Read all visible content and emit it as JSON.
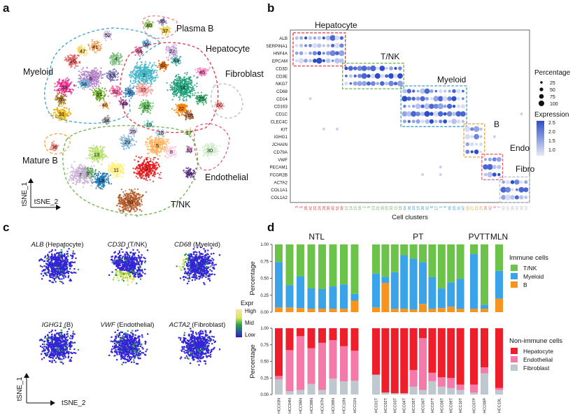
{
  "panel_labels": {
    "a": "a",
    "b": "b",
    "c": "c",
    "d": "d"
  },
  "panel_a": {
    "axis_x": "tSNE_2",
    "axis_y": "tSNE_1",
    "group_labels": [
      "Plasma B",
      "Hepatocyte",
      "Fibroblast",
      "Myeloid",
      "Mature B",
      "Endothelial",
      "T/NK"
    ],
    "cluster_ids": [
      "40",
      "37",
      "35",
      "44",
      "39",
      "41",
      "27",
      "49",
      "10",
      "4",
      "6",
      "47",
      "38",
      "42",
      "14",
      "28",
      "21",
      "26",
      "33",
      "31",
      "23",
      "32",
      "2",
      "46",
      "43",
      "12",
      "22",
      "9",
      "48",
      "45",
      "34",
      "19",
      "25",
      "36",
      "29",
      "5",
      "13",
      "8",
      "51",
      "30",
      "11",
      "18",
      "3",
      "1",
      "24",
      "20",
      "7",
      "15",
      "16",
      "17",
      "50",
      "52"
    ]
  },
  "panel_b": {
    "x_axis_label": "Cell clusters",
    "genes": [
      "ALB",
      "SERPINA1",
      "HNF4A",
      "EPCAM",
      "CD3D",
      "CD3E",
      "NKG7",
      "CD68",
      "CD14",
      "CD163",
      "CD1C",
      "CLEC4C",
      "KIT",
      "IGHG1",
      "JCHAIN",
      "CD79A",
      "VWF",
      "PECAM1",
      "FCGR2B",
      "ACTA2",
      "COL1A1",
      "COL1A2"
    ],
    "cluster_ticks": [
      "3",
      "5",
      "26",
      "41",
      "22",
      "24",
      "28",
      "39",
      "45",
      "51",
      "49",
      "12",
      "14",
      "15",
      "16",
      "2",
      "9",
      "13",
      "21",
      "35",
      "20",
      "33",
      "11",
      "18",
      "44",
      "36",
      "10",
      "19",
      "30",
      "32",
      "8",
      "17",
      "1",
      "4",
      "46",
      "25",
      "31",
      "47",
      "50",
      "27",
      "23",
      "29",
      "34",
      "42",
      "6",
      "7",
      "40",
      "37",
      "38",
      "43",
      "48",
      "52"
    ],
    "boxes": [
      "Hepatocyte",
      "T/NK",
      "Myeloid",
      "B",
      "Endo",
      "Fibro"
    ],
    "legend": {
      "percentage_title": "Percentage",
      "percentage_values": [
        "25",
        "50",
        "75",
        "100"
      ],
      "expression_title": "Expression",
      "expression_values": [
        "2.5",
        "2.0",
        "1.5",
        "1.0"
      ]
    }
  },
  "panel_c": {
    "maps": [
      {
        "gene": "ALB",
        "celltype": "(Hepatocyte)"
      },
      {
        "gene": "CD3D",
        "celltype": "(T/NK)"
      },
      {
        "gene": "CD68",
        "celltype": "(Myeloid)"
      },
      {
        "gene": "IGHG1",
        "celltype": "(B)"
      },
      {
        "gene": "VWF",
        "celltype": "(Endothelial)"
      },
      {
        "gene": "ACTA2",
        "celltype": "(Fibroblast)"
      }
    ],
    "legend": {
      "title": "Expr",
      "high": "High",
      "mid": "Mid",
      "low": "Low"
    },
    "axis_x": "tSNE_2",
    "axis_y": "tSNE_1"
  },
  "chart_data": [
    {
      "type": "bar",
      "title": "Immune cells",
      "ylabel": "Percentage",
      "ylim": [
        0,
        1
      ],
      "yticks": [
        "0.00",
        "0.25",
        "0.50",
        "0.75",
        "1.00"
      ],
      "groups": [
        "NTL",
        "PT",
        "PVTT",
        "MLN"
      ],
      "categories": [
        "HCC03N",
        "HCC04N",
        "HCC06N",
        "HCC08N",
        "HCC07N",
        "HCC09N",
        "HCC10N",
        "HCC11N",
        "HCC01T",
        "HCC02T",
        "HCC03T",
        "HCC04T",
        "HCC05T",
        "HCC06T",
        "HCC07T",
        "HCC08T",
        "HCC09T",
        "HCC10T",
        "HCC07P",
        "HCC08P",
        "HCC10L"
      ],
      "series": [
        {
          "name": "B",
          "color": "#f7941d",
          "values": [
            0.07,
            0.07,
            0.06,
            0.05,
            0.05,
            0.05,
            0.05,
            0.17,
            0.07,
            0.43,
            0.05,
            0.05,
            0.04,
            0.12,
            0.05,
            0.06,
            0.08,
            0.05,
            0.05,
            0.05,
            0.2
          ]
        },
        {
          "name": "Myeloid",
          "color": "#3ba3e8",
          "values": [
            0.67,
            0.33,
            0.47,
            0.3,
            0.29,
            0.33,
            0.36,
            0.1,
            0.5,
            0.09,
            0.54,
            0.79,
            0.75,
            0.62,
            0.47,
            0.29,
            0.36,
            0.44,
            0.81,
            0.06,
            0.41
          ]
        },
        {
          "name": "T/NK",
          "color": "#6cc34a",
          "values": [
            0.26,
            0.6,
            0.47,
            0.65,
            0.66,
            0.62,
            0.59,
            0.73,
            0.43,
            0.48,
            0.41,
            0.16,
            0.21,
            0.26,
            0.48,
            0.65,
            0.56,
            0.51,
            0.14,
            0.89,
            0.39
          ]
        }
      ]
    },
    {
      "type": "bar",
      "title": "Non-immune cells",
      "ylabel": "Percentage",
      "ylim": [
        0,
        1
      ],
      "yticks": [
        "0.00",
        "0.25",
        "0.50",
        "0.75",
        "1.00"
      ],
      "groups": [
        "NTL",
        "PT",
        "PVTT",
        "MLN"
      ],
      "categories": [
        "HCC03N",
        "HCC04N",
        "HCC06N",
        "HCC08N",
        "HCC07N",
        "HCC09N",
        "HCC10N",
        "HCC11N",
        "HCC01T",
        "HCC02T",
        "HCC03T",
        "HCC04T",
        "HCC05T",
        "HCC06T",
        "HCC07T",
        "HCC08T",
        "HCC09T",
        "HCC10T",
        "HCC07P",
        "HCC08P",
        "HCC10L"
      ],
      "series": [
        {
          "name": "Fibroblast",
          "color": "#bfc7cf",
          "values": [
            0.23,
            0.05,
            0.07,
            0.16,
            0.07,
            0.24,
            0.2,
            0.21,
            0.3,
            0.03,
            0.02,
            0.02,
            0.12,
            0.07,
            0.2,
            0.12,
            0.1,
            0.07,
            0.03,
            0.32,
            0.07
          ]
        },
        {
          "name": "Endothelial",
          "color": "#f47aaa",
          "values": [
            0.05,
            0.62,
            0.81,
            0.54,
            0.71,
            0.58,
            0.53,
            0.45,
            0.0,
            0.0,
            0.0,
            0.0,
            0.25,
            0.78,
            0.13,
            0.14,
            0.15,
            0.08,
            0.12,
            0.09,
            0.03
          ]
        },
        {
          "name": "Hepatocyte",
          "color": "#ee1f2a",
          "values": [
            0.72,
            0.33,
            0.12,
            0.3,
            0.22,
            0.18,
            0.27,
            0.34,
            0.7,
            0.97,
            0.98,
            0.98,
            0.63,
            0.15,
            0.67,
            0.74,
            0.75,
            0.85,
            0.85,
            0.59,
            0.9
          ]
        }
      ]
    }
  ]
}
